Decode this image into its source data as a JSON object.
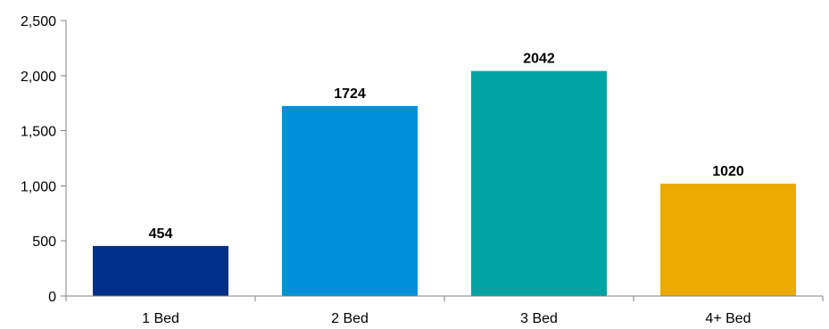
{
  "chart_data": {
    "type": "bar",
    "categories": [
      "1 Bed",
      "2 Bed",
      "3 Bed",
      "4+ Bed"
    ],
    "values": [
      454,
      1724,
      2042,
      1020
    ],
    "data_labels": [
      "454",
      "1724",
      "2042",
      "1020"
    ],
    "colors": [
      "#003087",
      "#0090da",
      "#00a3a1",
      "#eaaa00"
    ],
    "ylim": [
      0,
      2500
    ],
    "y_ticks": [
      0,
      500,
      1000,
      1500,
      2000,
      2500
    ],
    "y_tick_labels": [
      "0",
      "500",
      "1,000",
      "1,500",
      "2,000",
      "2,500"
    ],
    "grid": false,
    "legend": "none"
  }
}
